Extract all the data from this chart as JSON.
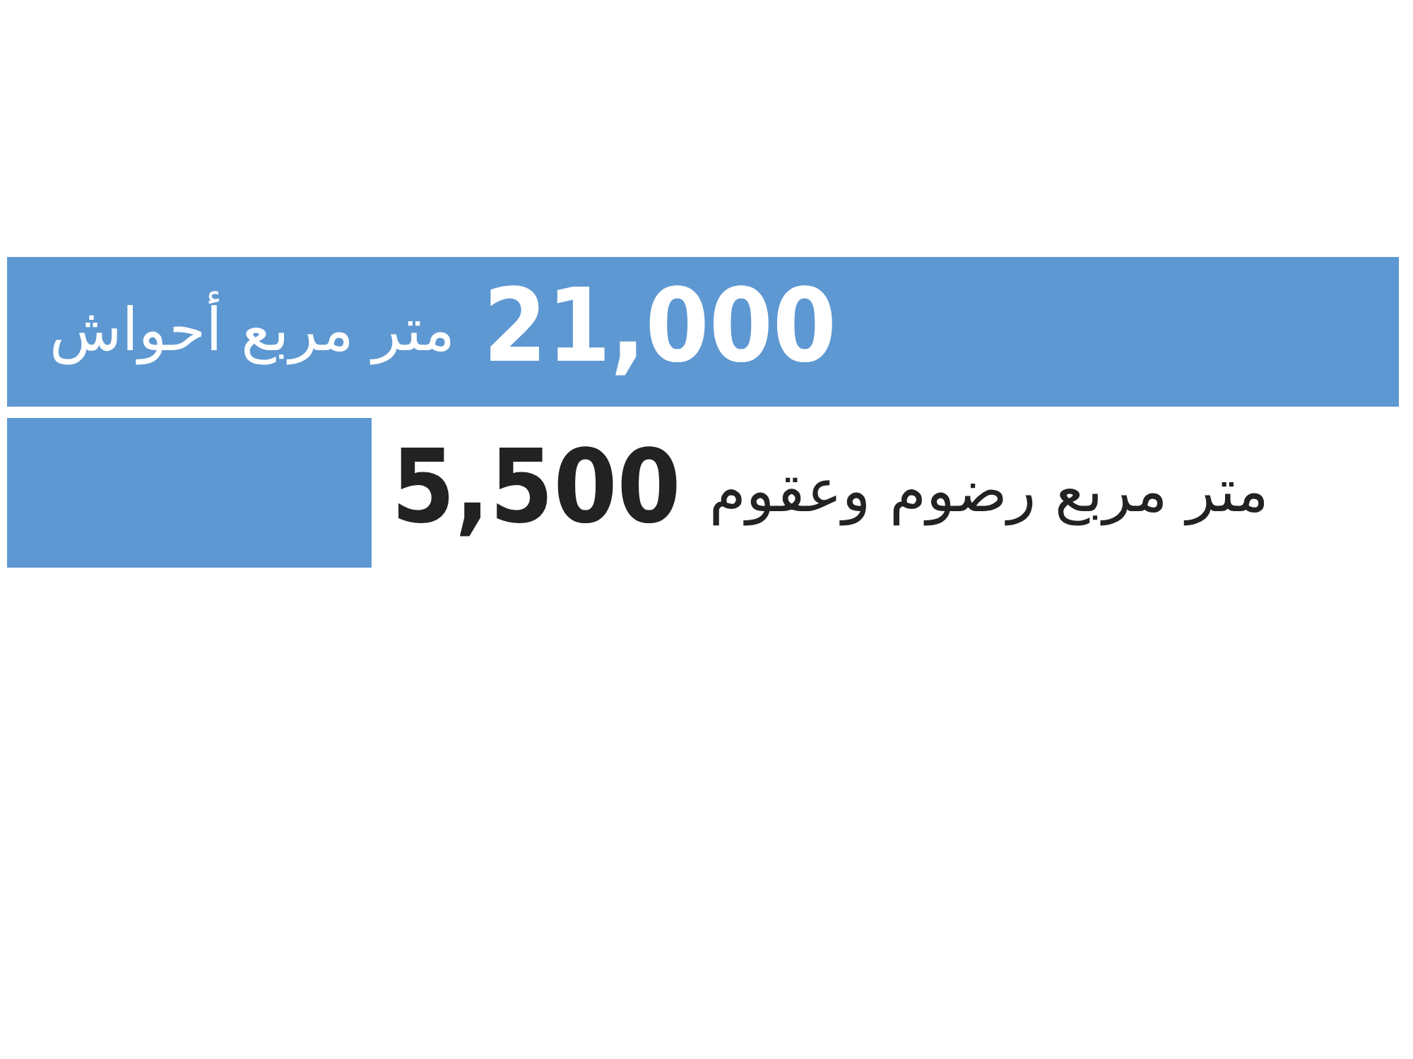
{
  "chart_data": {
    "type": "bar",
    "orientation": "horizontal",
    "categories": [
      "متر مربع أحواش",
      "متر مربع رضوم وعقوم"
    ],
    "values": [
      21000,
      5500
    ],
    "value_labels": [
      "21,000",
      "5,500"
    ],
    "color": "#5e98d2",
    "legend": false
  }
}
